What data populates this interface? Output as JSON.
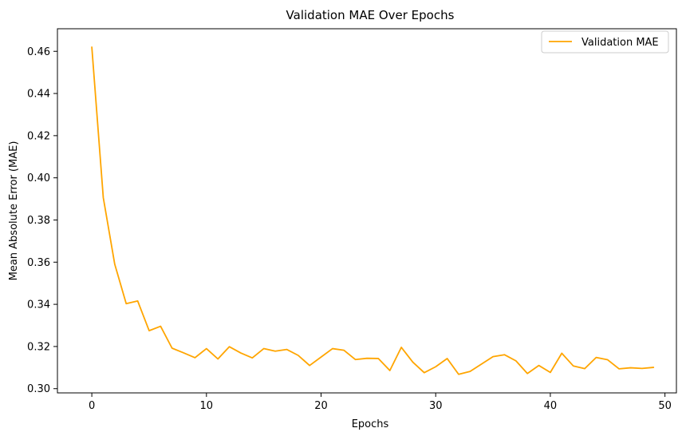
{
  "chart_data": {
    "type": "line",
    "title": "Validation MAE Over Epochs",
    "xlabel": "Epochs",
    "ylabel": "Mean Absolute Error (MAE)",
    "xlim": [
      -3,
      51
    ],
    "ylim": [
      0.298,
      0.4707
    ],
    "xticks": [
      0,
      10,
      20,
      30,
      40,
      50
    ],
    "yticks": [
      0.3,
      0.32,
      0.34,
      0.36,
      0.38,
      0.4,
      0.42,
      0.44,
      0.46
    ],
    "xtick_labels": [
      "0",
      "10",
      "20",
      "30",
      "40",
      "50"
    ],
    "ytick_labels": [
      "0.30",
      "0.32",
      "0.34",
      "0.36",
      "0.38",
      "0.40",
      "0.42",
      "0.44",
      "0.46"
    ],
    "grid": false,
    "legend_position": "top-right",
    "series": [
      {
        "name": "Validation MAE",
        "color": "#FFA500",
        "x": [
          0,
          1,
          2,
          3,
          4,
          5,
          6,
          7,
          8,
          9,
          10,
          11,
          12,
          13,
          14,
          15,
          16,
          17,
          18,
          19,
          20,
          21,
          22,
          23,
          24,
          25,
          26,
          27,
          28,
          29,
          30,
          31,
          32,
          33,
          34,
          35,
          36,
          37,
          38,
          39,
          40,
          41,
          42,
          43,
          44,
          45,
          46,
          47,
          48,
          49
        ],
        "values": [
          0.462,
          0.3906,
          0.359,
          0.3403,
          0.3416,
          0.3275,
          0.3296,
          0.3192,
          0.317,
          0.3147,
          0.319,
          0.3141,
          0.3199,
          0.3169,
          0.3146,
          0.319,
          0.3178,
          0.3186,
          0.3158,
          0.311,
          0.315,
          0.319,
          0.3182,
          0.3138,
          0.3144,
          0.3143,
          0.3086,
          0.3196,
          0.3126,
          0.3076,
          0.3104,
          0.3143,
          0.3068,
          0.3082,
          0.3117,
          0.3152,
          0.3161,
          0.3132,
          0.3072,
          0.311,
          0.3077,
          0.3168,
          0.3108,
          0.3095,
          0.3148,
          0.3137,
          0.3094,
          0.3099,
          0.3096,
          0.3101
        ]
      }
    ]
  }
}
